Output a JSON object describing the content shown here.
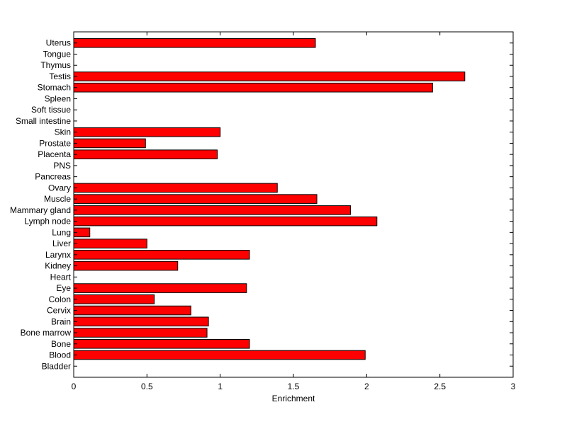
{
  "chart_data": {
    "type": "bar",
    "orientation": "horizontal",
    "title": "",
    "xlabel": "Enrichment",
    "ylabel": "",
    "xlim": [
      0,
      3
    ],
    "xticks": [
      0,
      0.5,
      1,
      1.5,
      2,
      2.5,
      3
    ],
    "xtick_labels": [
      "0",
      "0.5",
      "1",
      "1.5",
      "2",
      "2.5",
      "3"
    ],
    "grid": false,
    "legend": "none",
    "bar_color": "#ff0000",
    "categories": [
      "Bladder",
      "Blood",
      "Bone",
      "Bone marrow",
      "Brain",
      "Cervix",
      "Colon",
      "Eye",
      "Heart",
      "Kidney",
      "Larynx",
      "Liver",
      "Lung",
      "Lymph node",
      "Mammary gland",
      "Muscle",
      "Ovary",
      "Pancreas",
      "PNS",
      "Placenta",
      "Prostate",
      "Skin",
      "Small intestine",
      "Soft tissue",
      "Spleen",
      "Stomach",
      "Testis",
      "Thymus",
      "Tongue",
      "Uterus"
    ],
    "values": [
      0,
      1.99,
      1.2,
      0.91,
      0.92,
      0.8,
      0.55,
      1.18,
      0,
      0.71,
      1.2,
      0.5,
      0.11,
      2.07,
      1.89,
      1.66,
      1.39,
      0,
      0,
      0.98,
      0.49,
      1.0,
      0,
      0,
      0,
      2.45,
      2.67,
      0,
      0,
      1.65
    ]
  }
}
